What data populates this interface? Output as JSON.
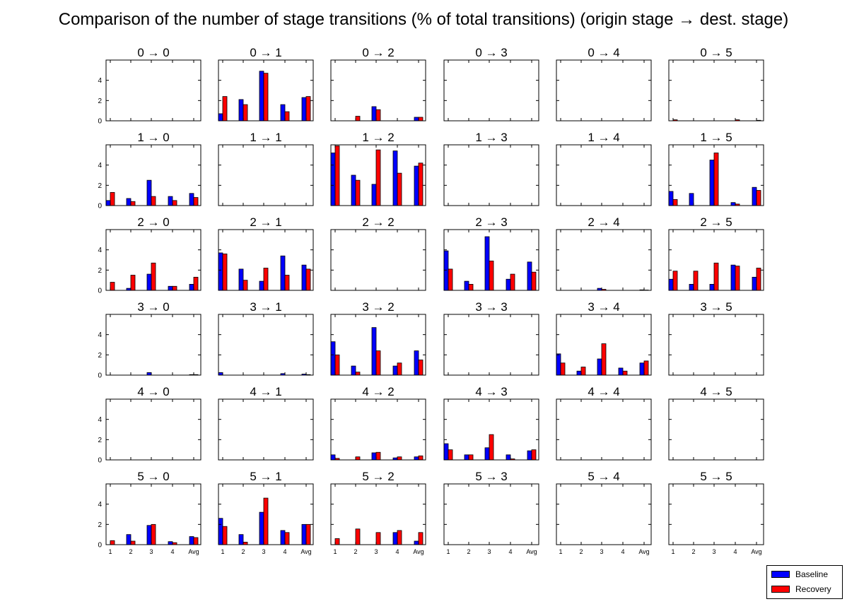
{
  "title": "Comparison of the number of stage transitions (% of total transitions) (origin stage → dest. stage)",
  "chart_data": {
    "type": "bar",
    "title": "Comparison of the number of stage transitions (% of total transitions) (origin stage → dest. stage)",
    "categories": [
      "1",
      "2",
      "3",
      "4",
      "Avg"
    ],
    "ylim": [
      0,
      6
    ],
    "yticks": [
      "0",
      "2",
      "4"
    ],
    "grid": false,
    "legend": {
      "position": "bottom-right",
      "entries": [
        "Baseline",
        "Recovery"
      ]
    },
    "series_colors": {
      "Baseline": "#0000ff",
      "Recovery": "#ff0000"
    },
    "subplots": [
      {
        "label": "0 → 0",
        "baseline": [
          0,
          0,
          0,
          0,
          0
        ],
        "recovery": [
          0,
          0,
          0,
          0,
          0
        ]
      },
      {
        "label": "0 → 1",
        "baseline": [
          0.7,
          2.1,
          4.9,
          1.6,
          2.3
        ],
        "recovery": [
          2.4,
          1.6,
          4.7,
          0.9,
          2.4
        ]
      },
      {
        "label": "0 → 2",
        "baseline": [
          0,
          0,
          1.4,
          0,
          0.35
        ],
        "recovery": [
          0,
          0.45,
          1.1,
          0,
          0.35
        ]
      },
      {
        "label": "0 → 3",
        "baseline": [
          0,
          0,
          0,
          0,
          0
        ],
        "recovery": [
          0,
          0,
          0,
          0,
          0
        ]
      },
      {
        "label": "0 → 4",
        "baseline": [
          0,
          0,
          0,
          0,
          0
        ],
        "recovery": [
          0,
          0,
          0,
          0,
          0
        ]
      },
      {
        "label": "0 → 5",
        "baseline": [
          0,
          0,
          0,
          0,
          0
        ],
        "recovery": [
          0.1,
          0,
          0,
          0.1,
          0.05
        ]
      },
      {
        "label": "1 → 0",
        "baseline": [
          0.5,
          0.7,
          2.5,
          0.9,
          1.2
        ],
        "recovery": [
          1.3,
          0.4,
          0.9,
          0.5,
          0.8
        ]
      },
      {
        "label": "1 → 1",
        "baseline": [
          0,
          0,
          0,
          0,
          0
        ],
        "recovery": [
          0,
          0,
          0,
          0,
          0
        ]
      },
      {
        "label": "1 → 2",
        "baseline": [
          5.2,
          3.0,
          2.1,
          5.4,
          3.9
        ],
        "recovery": [
          5.9,
          2.5,
          5.5,
          3.2,
          4.2
        ]
      },
      {
        "label": "1 → 3",
        "baseline": [
          0,
          0,
          0,
          0,
          0
        ],
        "recovery": [
          0,
          0,
          0,
          0,
          0
        ]
      },
      {
        "label": "1 → 4",
        "baseline": [
          0,
          0,
          0,
          0,
          0
        ],
        "recovery": [
          0,
          0,
          0,
          0,
          0
        ]
      },
      {
        "label": "1 → 5",
        "baseline": [
          1.4,
          1.2,
          4.5,
          0.3,
          1.8
        ],
        "recovery": [
          0.6,
          0,
          5.2,
          0.15,
          1.5
        ]
      },
      {
        "label": "2 → 0",
        "baseline": [
          0,
          0.2,
          1.6,
          0.4,
          0.6
        ],
        "recovery": [
          0.8,
          1.5,
          2.7,
          0.4,
          1.3
        ]
      },
      {
        "label": "2 → 1",
        "baseline": [
          3.7,
          2.1,
          0.9,
          3.4,
          2.5
        ],
        "recovery": [
          3.6,
          1.0,
          2.2,
          1.5,
          2.1
        ]
      },
      {
        "label": "2 → 2",
        "baseline": [
          0,
          0,
          0,
          0,
          0
        ],
        "recovery": [
          0,
          0,
          0,
          0,
          0
        ]
      },
      {
        "label": "2 → 3",
        "baseline": [
          3.9,
          0.9,
          5.3,
          1.1,
          2.8
        ],
        "recovery": [
          2.1,
          0.6,
          2.9,
          1.6,
          1.8
        ]
      },
      {
        "label": "2 → 4",
        "baseline": [
          0,
          0,
          0.2,
          0,
          0.05
        ],
        "recovery": [
          0,
          0,
          0.1,
          0,
          0.03
        ]
      },
      {
        "label": "2 → 5",
        "baseline": [
          1.1,
          0.6,
          0.6,
          2.5,
          1.3
        ],
        "recovery": [
          1.9,
          1.9,
          2.7,
          2.4,
          2.2
        ]
      },
      {
        "label": "3 → 0",
        "baseline": [
          0,
          0,
          0.25,
          0,
          0.05
        ],
        "recovery": [
          0,
          0,
          0,
          0,
          0.05
        ]
      },
      {
        "label": "3 → 1",
        "baseline": [
          0.25,
          0,
          0,
          0.15,
          0.1
        ],
        "recovery": [
          0,
          0,
          0,
          0,
          0.05
        ]
      },
      {
        "label": "3 → 2",
        "baseline": [
          3.3,
          0.9,
          4.7,
          0.9,
          2.4
        ],
        "recovery": [
          2.0,
          0.3,
          2.4,
          1.2,
          1.5
        ]
      },
      {
        "label": "3 → 3",
        "baseline": [
          0,
          0,
          0,
          0,
          0
        ],
        "recovery": [
          0,
          0,
          0,
          0,
          0
        ]
      },
      {
        "label": "3 → 4",
        "baseline": [
          2.1,
          0.4,
          1.6,
          0.7,
          1.2
        ],
        "recovery": [
          1.2,
          0.8,
          3.1,
          0.4,
          1.4
        ]
      },
      {
        "label": "3 → 5",
        "baseline": [
          0,
          0,
          0,
          0,
          0
        ],
        "recovery": [
          0,
          0,
          0,
          0,
          0
        ]
      },
      {
        "label": "4 → 0",
        "baseline": [
          0,
          0,
          0,
          0,
          0
        ],
        "recovery": [
          0,
          0,
          0,
          0,
          0
        ]
      },
      {
        "label": "4 → 1",
        "baseline": [
          0,
          0,
          0,
          0,
          0
        ],
        "recovery": [
          0,
          0,
          0,
          0,
          0
        ]
      },
      {
        "label": "4 → 2",
        "baseline": [
          0.5,
          0,
          0.7,
          0.2,
          0.3
        ],
        "recovery": [
          0.15,
          0.3,
          0.75,
          0.3,
          0.4
        ]
      },
      {
        "label": "4 → 3",
        "baseline": [
          1.6,
          0.5,
          1.2,
          0.5,
          0.9
        ],
        "recovery": [
          1.0,
          0.5,
          2.5,
          0.1,
          1.0
        ]
      },
      {
        "label": "4 → 4",
        "baseline": [
          0,
          0,
          0,
          0,
          0
        ],
        "recovery": [
          0,
          0,
          0,
          0,
          0
        ]
      },
      {
        "label": "4 → 5",
        "baseline": [
          0,
          0,
          0,
          0,
          0
        ],
        "recovery": [
          0,
          0,
          0,
          0,
          0
        ]
      },
      {
        "label": "5 → 0",
        "baseline": [
          0,
          1.0,
          1.9,
          0.3,
          0.8
        ],
        "recovery": [
          0.4,
          0.35,
          2.0,
          0.2,
          0.7
        ]
      },
      {
        "label": "5 → 1",
        "baseline": [
          2.6,
          1.0,
          3.2,
          1.4,
          2.0
        ],
        "recovery": [
          1.8,
          0.25,
          4.6,
          1.2,
          2.0
        ]
      },
      {
        "label": "5 → 2",
        "baseline": [
          0,
          0,
          0,
          1.2,
          0.35
        ],
        "recovery": [
          0.6,
          1.55,
          1.2,
          1.4,
          1.2
        ]
      },
      {
        "label": "5 → 3",
        "baseline": [
          0,
          0,
          0,
          0,
          0
        ],
        "recovery": [
          0,
          0,
          0,
          0,
          0
        ]
      },
      {
        "label": "5 → 4",
        "baseline": [
          0,
          0,
          0,
          0,
          0
        ],
        "recovery": [
          0,
          0,
          0,
          0,
          0
        ]
      },
      {
        "label": "5 → 5",
        "baseline": [
          0,
          0,
          0,
          0,
          0
        ],
        "recovery": [
          0,
          0,
          0,
          0,
          0
        ]
      }
    ]
  }
}
